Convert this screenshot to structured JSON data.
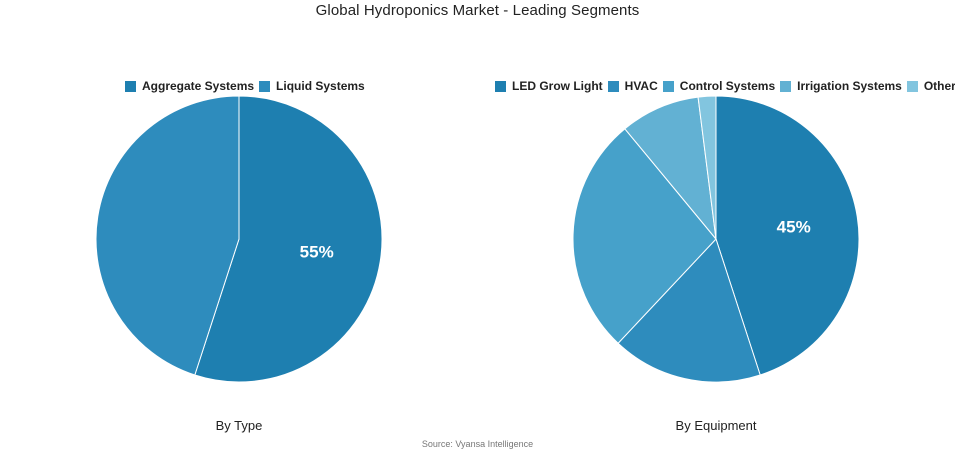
{
  "title": "Global Hydroponics Market - Leading Segments",
  "source": "Source: Vyansa Intelligence",
  "chart_data": [
    {
      "type": "pie",
      "caption": "By Type",
      "legend_placement": "top",
      "slices": [
        {
          "label": "Aggregate Systems",
          "value": 55,
          "color": "#1e7fb0",
          "data_label": "55%"
        },
        {
          "label": "Liquid Systems",
          "value": 45,
          "color": "#2e8cbd",
          "data_label": ""
        }
      ]
    },
    {
      "type": "pie",
      "caption": "By Equipment",
      "legend_placement": "top",
      "slices": [
        {
          "label": "LED Grow Light",
          "value": 45,
          "color": "#1e7fb0",
          "data_label": "45%"
        },
        {
          "label": "HVAC",
          "value": 17,
          "color": "#2e8cbd",
          "data_label": ""
        },
        {
          "label": "Control Systems",
          "value": 27,
          "color": "#46a1ca",
          "data_label": ""
        },
        {
          "label": "Irrigation Systems",
          "value": 9,
          "color": "#62b1d3",
          "data_label": ""
        },
        {
          "label": "Others",
          "value": 2,
          "color": "#82c5df",
          "data_label": ""
        }
      ]
    }
  ]
}
